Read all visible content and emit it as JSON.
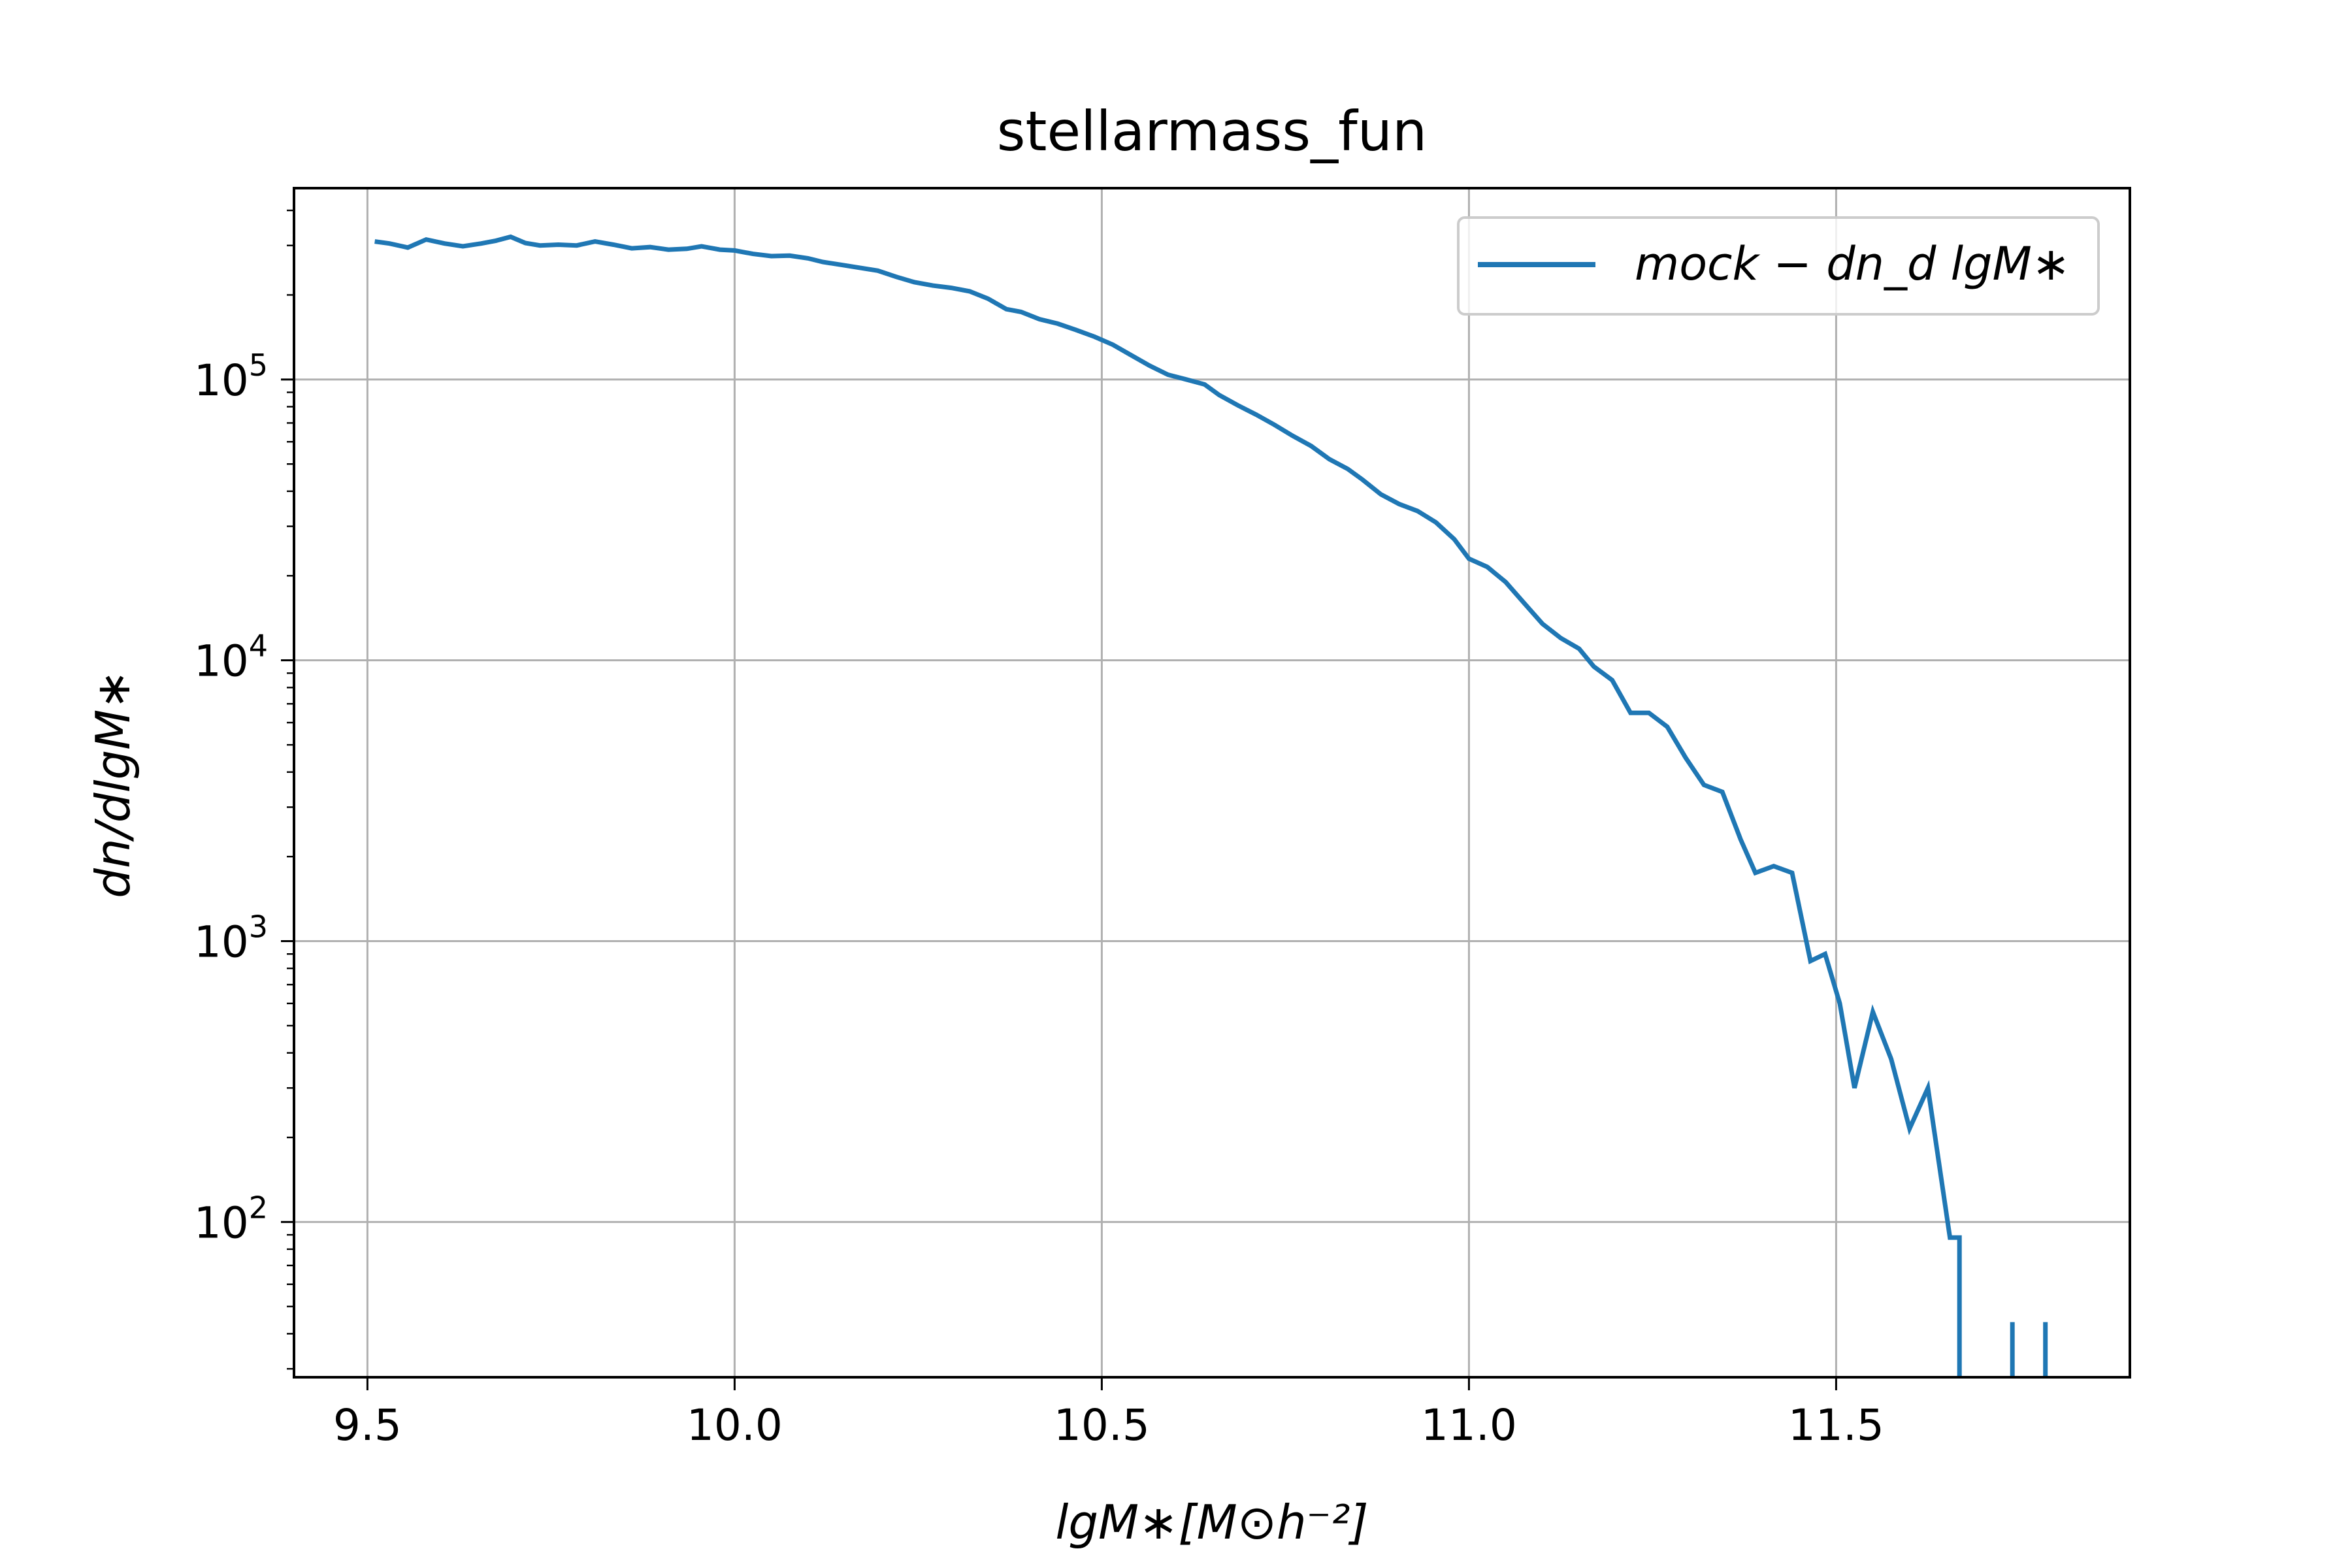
{
  "chart_data": {
    "type": "line",
    "title": "stellarmass_fun",
    "xlabel": "lgM∗[M⊙h⁻²]",
    "ylabel": "dn/dlgM∗",
    "xlim": [
      9.4,
      11.9
    ],
    "ylim": [
      28,
      480000
    ],
    "yscale": "log",
    "grid": true,
    "legend_position": "top-right",
    "x_ticks": [
      "9.5",
      "10.0",
      "10.5",
      "11.0",
      "11.5"
    ],
    "x_tick_values": [
      9.5,
      10.0,
      10.5,
      11.0,
      11.5
    ],
    "y_ticks": [
      {
        "value": 100,
        "base": "10",
        "exp": "2"
      },
      {
        "value": 1000,
        "base": "10",
        "exp": "3"
      },
      {
        "value": 10000,
        "base": "10",
        "exp": "4"
      },
      {
        "value": 100000,
        "base": "10",
        "exp": "5"
      }
    ],
    "series": [
      {
        "name": "mock − dn_d lgM∗",
        "color": "#1f77b4",
        "segments": [
          {
            "x": [
              9.51,
              9.53,
              9.555,
              9.58,
              9.605,
              9.63,
              9.655,
              9.675,
              9.695,
              9.715,
              9.735,
              9.76,
              9.785,
              9.81,
              9.835,
              9.86,
              9.885,
              9.91,
              9.935,
              9.955,
              9.98,
              10.0,
              10.025,
              10.05,
              10.075,
              10.1,
              10.12,
              10.145,
              10.17,
              10.195,
              10.22,
              10.245,
              10.27,
              10.295,
              10.32,
              10.345,
              10.37,
              10.39,
              10.415,
              10.44,
              10.465,
              10.49,
              10.515,
              10.54,
              10.565,
              10.59,
              10.615,
              10.64,
              10.66,
              10.685,
              10.71,
              10.735,
              10.76,
              10.785,
              10.81,
              10.835,
              10.855,
              10.88,
              10.905,
              10.93,
              10.955,
              10.98,
              11.0,
              11.025,
              11.05,
              11.075,
              11.1,
              11.125,
              11.15,
              11.17,
              11.195,
              11.22,
              11.245,
              11.27,
              11.295,
              11.32,
              11.345,
              11.37,
              11.39,
              11.415,
              11.44,
              11.465,
              11.485,
              11.505,
              11.525,
              11.55,
              11.575,
              11.6,
              11.625,
              11.655,
              11.668,
              11.668
            ],
            "y": [
              310000,
              305000,
              295000,
              315000,
              305000,
              298000,
              305000,
              312000,
              322000,
              306000,
              300000,
              302000,
              300000,
              310000,
              302000,
              293000,
              296000,
              290000,
              292000,
              298000,
              290000,
              288000,
              280000,
              275000,
              276000,
              270000,
              262000,
              256000,
              250000,
              244000,
              232000,
              222000,
              216000,
              212000,
              206000,
              194000,
              178000,
              174000,
              164000,
              158000,
              150000,
              142000,
              133000,
              122000,
              112000,
              104000,
              100000,
              96000,
              88000,
              81000,
              75000,
              69000,
              63000,
              58000,
              52000,
              48000,
              44000,
              39000,
              36000,
              34000,
              31000,
              27000,
              23000,
              21500,
              19000,
              16000,
              13500,
              12000,
              11000,
              9500,
              8500,
              6500,
              6500,
              5800,
              4500,
              3600,
              3400,
              2300,
              1750,
              1850,
              1750,
              850,
              900,
              600,
              300,
              560,
              380,
              215,
              300,
              88,
              88,
              28
            ]
          },
          {
            "x": [
              11.74,
              11.74
            ],
            "y": [
              28,
              44
            ]
          },
          {
            "x": [
              11.785,
              11.785
            ],
            "y": [
              28,
              44
            ]
          }
        ]
      }
    ]
  }
}
